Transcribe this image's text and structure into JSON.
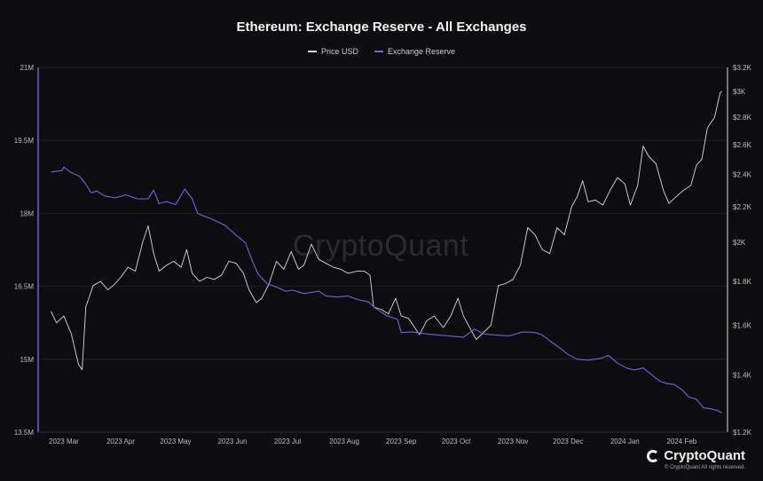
{
  "chart_data": {
    "type": "line",
    "title": "Ethereum: Exchange Reserve - All Exchanges",
    "legend_placement": "top-center",
    "grid": true,
    "series": [
      {
        "name": "Price USD",
        "axis": "right",
        "color": "#d9d9d9",
        "points": [
          [
            "2023-02-22",
            1660
          ],
          [
            "2023-02-25",
            1610
          ],
          [
            "2023-03-01",
            1640
          ],
          [
            "2023-03-05",
            1565
          ],
          [
            "2023-03-09",
            1440
          ],
          [
            "2023-03-11",
            1420
          ],
          [
            "2023-03-13",
            1680
          ],
          [
            "2023-03-17",
            1780
          ],
          [
            "2023-03-21",
            1800
          ],
          [
            "2023-03-25",
            1760
          ],
          [
            "2023-03-28",
            1780
          ],
          [
            "2023-04-01",
            1820
          ],
          [
            "2023-04-05",
            1870
          ],
          [
            "2023-04-09",
            1850
          ],
          [
            "2023-04-13",
            2000
          ],
          [
            "2023-04-16",
            2090
          ],
          [
            "2023-04-19",
            1940
          ],
          [
            "2023-04-22",
            1850
          ],
          [
            "2023-04-26",
            1880
          ],
          [
            "2023-04-30",
            1900
          ],
          [
            "2023-05-04",
            1870
          ],
          [
            "2023-05-07",
            1960
          ],
          [
            "2023-05-10",
            1840
          ],
          [
            "2023-05-14",
            1800
          ],
          [
            "2023-05-18",
            1820
          ],
          [
            "2023-05-22",
            1810
          ],
          [
            "2023-05-26",
            1830
          ],
          [
            "2023-05-30",
            1900
          ],
          [
            "2023-06-03",
            1890
          ],
          [
            "2023-06-07",
            1840
          ],
          [
            "2023-06-10",
            1760
          ],
          [
            "2023-06-14",
            1700
          ],
          [
            "2023-06-17",
            1720
          ],
          [
            "2023-06-21",
            1790
          ],
          [
            "2023-06-25",
            1900
          ],
          [
            "2023-06-29",
            1860
          ],
          [
            "2023-07-03",
            1950
          ],
          [
            "2023-07-07",
            1860
          ],
          [
            "2023-07-10",
            1880
          ],
          [
            "2023-07-14",
            1990
          ],
          [
            "2023-07-18",
            1910
          ],
          [
            "2023-07-22",
            1890
          ],
          [
            "2023-07-26",
            1870
          ],
          [
            "2023-07-30",
            1860
          ],
          [
            "2023-08-03",
            1840
          ],
          [
            "2023-08-08",
            1850
          ],
          [
            "2023-08-12",
            1850
          ],
          [
            "2023-08-15",
            1830
          ],
          [
            "2023-08-17",
            1680
          ],
          [
            "2023-08-21",
            1670
          ],
          [
            "2023-08-25",
            1650
          ],
          [
            "2023-08-29",
            1720
          ],
          [
            "2023-09-01",
            1640
          ],
          [
            "2023-09-05",
            1630
          ],
          [
            "2023-09-11",
            1560
          ],
          [
            "2023-09-15",
            1620
          ],
          [
            "2023-09-19",
            1640
          ],
          [
            "2023-09-24",
            1590
          ],
          [
            "2023-09-28",
            1640
          ],
          [
            "2023-10-02",
            1720
          ],
          [
            "2023-10-05",
            1640
          ],
          [
            "2023-10-09",
            1580
          ],
          [
            "2023-10-12",
            1540
          ],
          [
            "2023-10-16",
            1570
          ],
          [
            "2023-10-20",
            1600
          ],
          [
            "2023-10-24",
            1780
          ],
          [
            "2023-10-28",
            1790
          ],
          [
            "2023-11-01",
            1810
          ],
          [
            "2023-11-05",
            1880
          ],
          [
            "2023-11-09",
            2080
          ],
          [
            "2023-11-13",
            2040
          ],
          [
            "2023-11-17",
            1960
          ],
          [
            "2023-11-21",
            1940
          ],
          [
            "2023-11-25",
            2080
          ],
          [
            "2023-11-29",
            2040
          ],
          [
            "2023-12-03",
            2200
          ],
          [
            "2023-12-06",
            2260
          ],
          [
            "2023-12-09",
            2360
          ],
          [
            "2023-12-12",
            2230
          ],
          [
            "2023-12-16",
            2240
          ],
          [
            "2023-12-20",
            2210
          ],
          [
            "2023-12-24",
            2300
          ],
          [
            "2023-12-28",
            2380
          ],
          [
            "2024-01-01",
            2340
          ],
          [
            "2024-01-04",
            2210
          ],
          [
            "2024-01-08",
            2330
          ],
          [
            "2024-01-11",
            2590
          ],
          [
            "2024-01-14",
            2520
          ],
          [
            "2024-01-18",
            2470
          ],
          [
            "2024-01-22",
            2300
          ],
          [
            "2024-01-25",
            2220
          ],
          [
            "2024-01-29",
            2260
          ],
          [
            "2024-02-02",
            2300
          ],
          [
            "2024-02-06",
            2330
          ],
          [
            "2024-02-09",
            2460
          ],
          [
            "2024-02-12",
            2500
          ],
          [
            "2024-02-15",
            2720
          ],
          [
            "2024-02-19",
            2800
          ],
          [
            "2024-02-22",
            2990
          ],
          [
            "2024-02-23",
            3000
          ]
        ]
      },
      {
        "name": "Exchange Reserve",
        "axis": "left",
        "color": "#6d63e8",
        "points": [
          [
            "2023-02-22",
            18.85
          ],
          [
            "2023-02-28",
            18.88
          ],
          [
            "2023-03-01",
            18.95
          ],
          [
            "2023-03-05",
            18.84
          ],
          [
            "2023-03-10",
            18.75
          ],
          [
            "2023-03-13",
            18.6
          ],
          [
            "2023-03-16",
            18.42
          ],
          [
            "2023-03-19",
            18.46
          ],
          [
            "2023-03-23",
            18.36
          ],
          [
            "2023-03-29",
            18.32
          ],
          [
            "2023-04-04",
            18.38
          ],
          [
            "2023-04-10",
            18.3
          ],
          [
            "2023-04-16",
            18.3
          ],
          [
            "2023-04-19",
            18.48
          ],
          [
            "2023-04-22",
            18.2
          ],
          [
            "2023-04-26",
            18.24
          ],
          [
            "2023-05-01",
            18.18
          ],
          [
            "2023-05-06",
            18.5
          ],
          [
            "2023-05-10",
            18.3
          ],
          [
            "2023-05-13",
            18.0
          ],
          [
            "2023-05-16",
            17.95
          ],
          [
            "2023-05-21",
            17.88
          ],
          [
            "2023-05-28",
            17.75
          ],
          [
            "2023-06-03",
            17.55
          ],
          [
            "2023-06-08",
            17.4
          ],
          [
            "2023-06-12",
            17.0
          ],
          [
            "2023-06-15",
            16.75
          ],
          [
            "2023-06-20",
            16.55
          ],
          [
            "2023-06-24",
            16.5
          ],
          [
            "2023-06-30",
            16.4
          ],
          [
            "2023-07-04",
            16.42
          ],
          [
            "2023-07-10",
            16.35
          ],
          [
            "2023-07-18",
            16.4
          ],
          [
            "2023-07-22",
            16.3
          ],
          [
            "2023-07-28",
            16.28
          ],
          [
            "2023-08-03",
            16.3
          ],
          [
            "2023-08-09",
            16.22
          ],
          [
            "2023-08-14",
            16.18
          ],
          [
            "2023-08-18",
            16.05
          ],
          [
            "2023-08-24",
            15.9
          ],
          [
            "2023-08-30",
            15.82
          ],
          [
            "2023-09-01",
            15.55
          ],
          [
            "2023-09-07",
            15.56
          ],
          [
            "2023-09-15",
            15.52
          ],
          [
            "2023-09-21",
            15.5
          ],
          [
            "2023-09-27",
            15.48
          ],
          [
            "2023-10-05",
            15.45
          ],
          [
            "2023-10-11",
            15.62
          ],
          [
            "2023-10-16",
            15.52
          ],
          [
            "2023-10-22",
            15.5
          ],
          [
            "2023-10-30",
            15.48
          ],
          [
            "2023-11-06",
            15.56
          ],
          [
            "2023-11-13",
            15.55
          ],
          [
            "2023-11-17",
            15.5
          ],
          [
            "2023-11-21",
            15.38
          ],
          [
            "2023-11-27",
            15.22
          ],
          [
            "2023-12-01",
            15.1
          ],
          [
            "2023-12-06",
            15.0
          ],
          [
            "2023-12-12",
            14.98
          ],
          [
            "2023-12-19",
            15.02
          ],
          [
            "2023-12-23",
            15.08
          ],
          [
            "2023-12-28",
            14.92
          ],
          [
            "2024-01-02",
            14.82
          ],
          [
            "2024-01-06",
            14.78
          ],
          [
            "2024-01-11",
            14.82
          ],
          [
            "2024-01-15",
            14.7
          ],
          [
            "2024-01-20",
            14.55
          ],
          [
            "2024-01-24",
            14.5
          ],
          [
            "2024-01-28",
            14.48
          ],
          [
            "2024-02-01",
            14.38
          ],
          [
            "2024-02-05",
            14.22
          ],
          [
            "2024-02-09",
            14.18
          ],
          [
            "2024-02-13",
            14.0
          ],
          [
            "2024-02-17",
            13.98
          ],
          [
            "2024-02-20",
            13.95
          ],
          [
            "2024-02-23",
            13.9
          ]
        ]
      }
    ],
    "x_range": [
      "2023-02-15",
      "2024-02-26"
    ],
    "x_ticks": [
      "2023 Mar",
      "2023 Apr",
      "2023 May",
      "2023 Jun",
      "2023 Jul",
      "2023 Aug",
      "2023 Sep",
      "2023 Oct",
      "2023 Nov",
      "2023 Dec",
      "2024 Jan",
      "2024 Feb"
    ],
    "x_tick_dates": [
      "2023-03-01",
      "2023-04-01",
      "2023-05-01",
      "2023-06-01",
      "2023-07-01",
      "2023-08-01",
      "2023-09-01",
      "2023-10-01",
      "2023-11-01",
      "2023-12-01",
      "2024-01-01",
      "2024-02-01"
    ],
    "y_left": {
      "range": [
        13.5,
        21
      ],
      "ticks": [
        13.5,
        15,
        16.5,
        18,
        19.5,
        21
      ],
      "tick_labels": [
        "13.5M",
        "15M",
        "16.5M",
        "18M",
        "19.5M",
        "21M"
      ]
    },
    "y_right": {
      "scale": "log",
      "range": [
        1200,
        3200
      ],
      "ticks": [
        1200,
        1400,
        1600,
        1800,
        2000,
        2200,
        2400,
        2600,
        2800,
        3000,
        3200
      ],
      "tick_labels": [
        "$1.2K",
        "$1.4K",
        "$1.6K",
        "$1.8K",
        "$2K",
        "$2.2K",
        "$2.4K",
        "$2.6K",
        "$2.8K",
        "$3K",
        "$3.2K"
      ]
    }
  },
  "watermark": "CryptoQuant",
  "brand": {
    "name": "CryptoQuant",
    "rights": "© CryptoQuant All rights reserved."
  }
}
